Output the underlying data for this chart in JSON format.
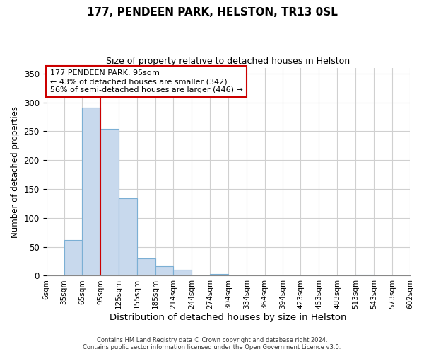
{
  "title": "177, PENDEEN PARK, HELSTON, TR13 0SL",
  "subtitle": "Size of property relative to detached houses in Helston",
  "xlabel": "Distribution of detached houses by size in Helston",
  "ylabel": "Number of detached properties",
  "bin_edges": [
    6,
    35,
    65,
    95,
    125,
    155,
    185,
    214,
    244,
    274,
    304,
    334,
    364,
    394,
    423,
    453,
    483,
    513,
    543,
    573,
    602
  ],
  "bin_labels": [
    "6sqm",
    "35sqm",
    "65sqm",
    "95sqm",
    "125sqm",
    "155sqm",
    "185sqm",
    "214sqm",
    "244sqm",
    "274sqm",
    "304sqm",
    "334sqm",
    "364sqm",
    "394sqm",
    "423sqm",
    "453sqm",
    "483sqm",
    "513sqm",
    "543sqm",
    "573sqm",
    "602sqm"
  ],
  "counts": [
    0,
    62,
    291,
    254,
    134,
    30,
    17,
    10,
    0,
    3,
    0,
    0,
    0,
    0,
    0,
    0,
    0,
    2,
    0,
    0
  ],
  "bar_color": "#c8d9ed",
  "bar_edge_color": "#7bafd4",
  "vline_x": 95,
  "vline_color": "#cc0000",
  "ylim": [
    0,
    360
  ],
  "yticks": [
    0,
    50,
    100,
    150,
    200,
    250,
    300,
    350
  ],
  "annotation_text": "177 PENDEEN PARK: 95sqm\n← 43% of detached houses are smaller (342)\n56% of semi-detached houses are larger (446) →",
  "annotation_box_color": "#ffffff",
  "annotation_box_edgecolor": "#cc0000",
  "footer_line1": "Contains HM Land Registry data © Crown copyright and database right 2024.",
  "footer_line2": "Contains public sector information licensed under the Open Government Licence v3.0.",
  "background_color": "#ffffff",
  "grid_color": "#d0d0d0"
}
